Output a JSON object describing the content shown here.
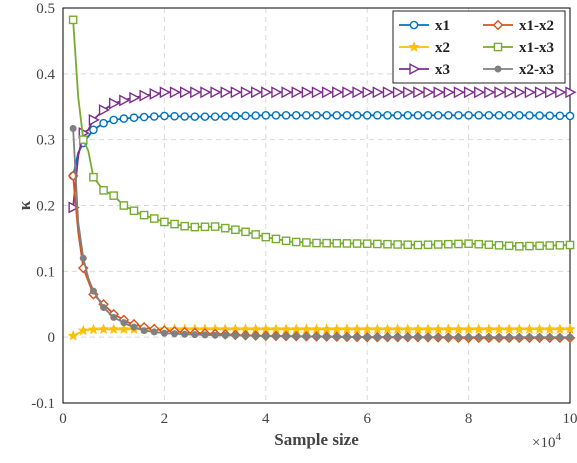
{
  "chart_data": {
    "type": "line",
    "xlabel": "Sample size",
    "ylabel": "κ",
    "x_multiplier_label": "×10",
    "x_multiplier_exp": "4",
    "xlim": [
      0,
      10
    ],
    "ylim": [
      -0.1,
      0.5
    ],
    "xticks": [
      0,
      2,
      4,
      6,
      8,
      10
    ],
    "yticks": [
      -0.1,
      0,
      0.1,
      0.2,
      0.3,
      0.4,
      0.5
    ],
    "xtick_labels": [
      "0",
      "2",
      "4",
      "6",
      "8",
      "10"
    ],
    "ytick_labels": [
      "-0.1",
      "0",
      "0.1",
      "0.2",
      "0.3",
      "0.4",
      "0.5"
    ],
    "grid": true,
    "legend_position": "top-right",
    "series": [
      {
        "name": "x1",
        "color": "#0072bd",
        "marker": "circle",
        "points": [
          [
            0.2,
            0.245
          ],
          [
            0.3,
            0.28
          ],
          [
            0.4,
            0.295
          ],
          [
            0.5,
            0.305
          ],
          [
            0.6,
            0.315
          ],
          [
            0.8,
            0.325
          ],
          [
            1.0,
            0.33
          ],
          [
            1.2,
            0.332
          ],
          [
            1.5,
            0.334
          ],
          [
            2.0,
            0.336
          ],
          [
            2.5,
            0.335
          ],
          [
            3.0,
            0.335
          ],
          [
            3.5,
            0.336
          ],
          [
            4.0,
            0.337
          ],
          [
            5.0,
            0.337
          ],
          [
            6.0,
            0.337
          ],
          [
            7.0,
            0.337
          ],
          [
            8.0,
            0.337
          ],
          [
            9.0,
            0.337
          ],
          [
            10.0,
            0.336
          ]
        ]
      },
      {
        "name": "x2",
        "color": "#ffc000",
        "marker": "star",
        "points": [
          [
            0.2,
            0.002
          ],
          [
            0.3,
            0.006
          ],
          [
            0.4,
            0.01
          ],
          [
            0.5,
            0.011
          ],
          [
            0.7,
            0.012
          ],
          [
            1.0,
            0.012
          ],
          [
            1.5,
            0.012
          ],
          [
            2.0,
            0.012
          ],
          [
            3.0,
            0.012
          ],
          [
            4.0,
            0.012
          ],
          [
            5.0,
            0.012
          ],
          [
            6.0,
            0.012
          ],
          [
            7.0,
            0.012
          ],
          [
            8.0,
            0.012
          ],
          [
            9.0,
            0.012
          ],
          [
            10.0,
            0.012
          ]
        ]
      },
      {
        "name": "x3",
        "color": "#7e2f8e",
        "marker": "triangle-right",
        "points": [
          [
            0.2,
            0.197
          ],
          [
            0.3,
            0.275
          ],
          [
            0.4,
            0.31
          ],
          [
            0.5,
            0.315
          ],
          [
            0.6,
            0.33
          ],
          [
            0.8,
            0.345
          ],
          [
            1.0,
            0.355
          ],
          [
            1.3,
            0.362
          ],
          [
            1.6,
            0.367
          ],
          [
            2.0,
            0.372
          ],
          [
            2.5,
            0.372
          ],
          [
            3.0,
            0.372
          ],
          [
            4.0,
            0.372
          ],
          [
            5.0,
            0.372
          ],
          [
            6.0,
            0.372
          ],
          [
            7.0,
            0.372
          ],
          [
            8.0,
            0.372
          ],
          [
            9.0,
            0.372
          ],
          [
            10.0,
            0.372
          ]
        ]
      },
      {
        "name": "x1-x2",
        "color": "#d95319",
        "marker": "diamond",
        "points": [
          [
            0.2,
            0.245
          ],
          [
            0.3,
            0.16
          ],
          [
            0.4,
            0.105
          ],
          [
            0.5,
            0.085
          ],
          [
            0.6,
            0.065
          ],
          [
            0.8,
            0.05
          ],
          [
            1.0,
            0.035
          ],
          [
            1.3,
            0.022
          ],
          [
            1.6,
            0.015
          ],
          [
            2.0,
            0.01
          ],
          [
            2.5,
            0.007
          ],
          [
            3.0,
            0.005
          ],
          [
            3.5,
            0.003
          ],
          [
            4.0,
            0.002
          ],
          [
            5.0,
            0.001
          ],
          [
            6.0,
            0.0
          ],
          [
            7.0,
            0.0
          ],
          [
            8.0,
            -0.001
          ],
          [
            9.0,
            -0.001
          ],
          [
            10.0,
            -0.001
          ]
        ]
      },
      {
        "name": "x1-x3",
        "color": "#77ac30",
        "marker": "square",
        "points": [
          [
            0.2,
            0.482
          ],
          [
            0.3,
            0.365
          ],
          [
            0.4,
            0.3
          ],
          [
            0.5,
            0.283
          ],
          [
            0.6,
            0.243
          ],
          [
            0.8,
            0.223
          ],
          [
            1.0,
            0.215
          ],
          [
            1.2,
            0.2
          ],
          [
            1.5,
            0.188
          ],
          [
            2.0,
            0.175
          ],
          [
            2.5,
            0.167
          ],
          [
            3.0,
            0.168
          ],
          [
            3.5,
            0.162
          ],
          [
            4.0,
            0.152
          ],
          [
            4.5,
            0.145
          ],
          [
            5.0,
            0.143
          ],
          [
            6.0,
            0.142
          ],
          [
            7.0,
            0.14
          ],
          [
            8.0,
            0.142
          ],
          [
            9.0,
            0.138
          ],
          [
            10.0,
            0.14
          ]
        ]
      },
      {
        "name": "x2-x3",
        "color": "#808080",
        "marker": "dot",
        "points": [
          [
            0.2,
            0.317
          ],
          [
            0.3,
            0.175
          ],
          [
            0.4,
            0.12
          ],
          [
            0.5,
            0.09
          ],
          [
            0.6,
            0.07
          ],
          [
            0.8,
            0.045
          ],
          [
            1.0,
            0.03
          ],
          [
            1.3,
            0.018
          ],
          [
            1.6,
            0.01
          ],
          [
            2.0,
            0.006
          ],
          [
            2.5,
            0.004
          ],
          [
            3.0,
            0.003
          ],
          [
            4.0,
            0.002
          ],
          [
            5.0,
            0.001
          ],
          [
            6.0,
            0.0
          ],
          [
            7.0,
            0.0
          ],
          [
            8.0,
            0.0
          ],
          [
            9.0,
            0.0
          ],
          [
            10.0,
            0.0
          ]
        ]
      }
    ]
  }
}
